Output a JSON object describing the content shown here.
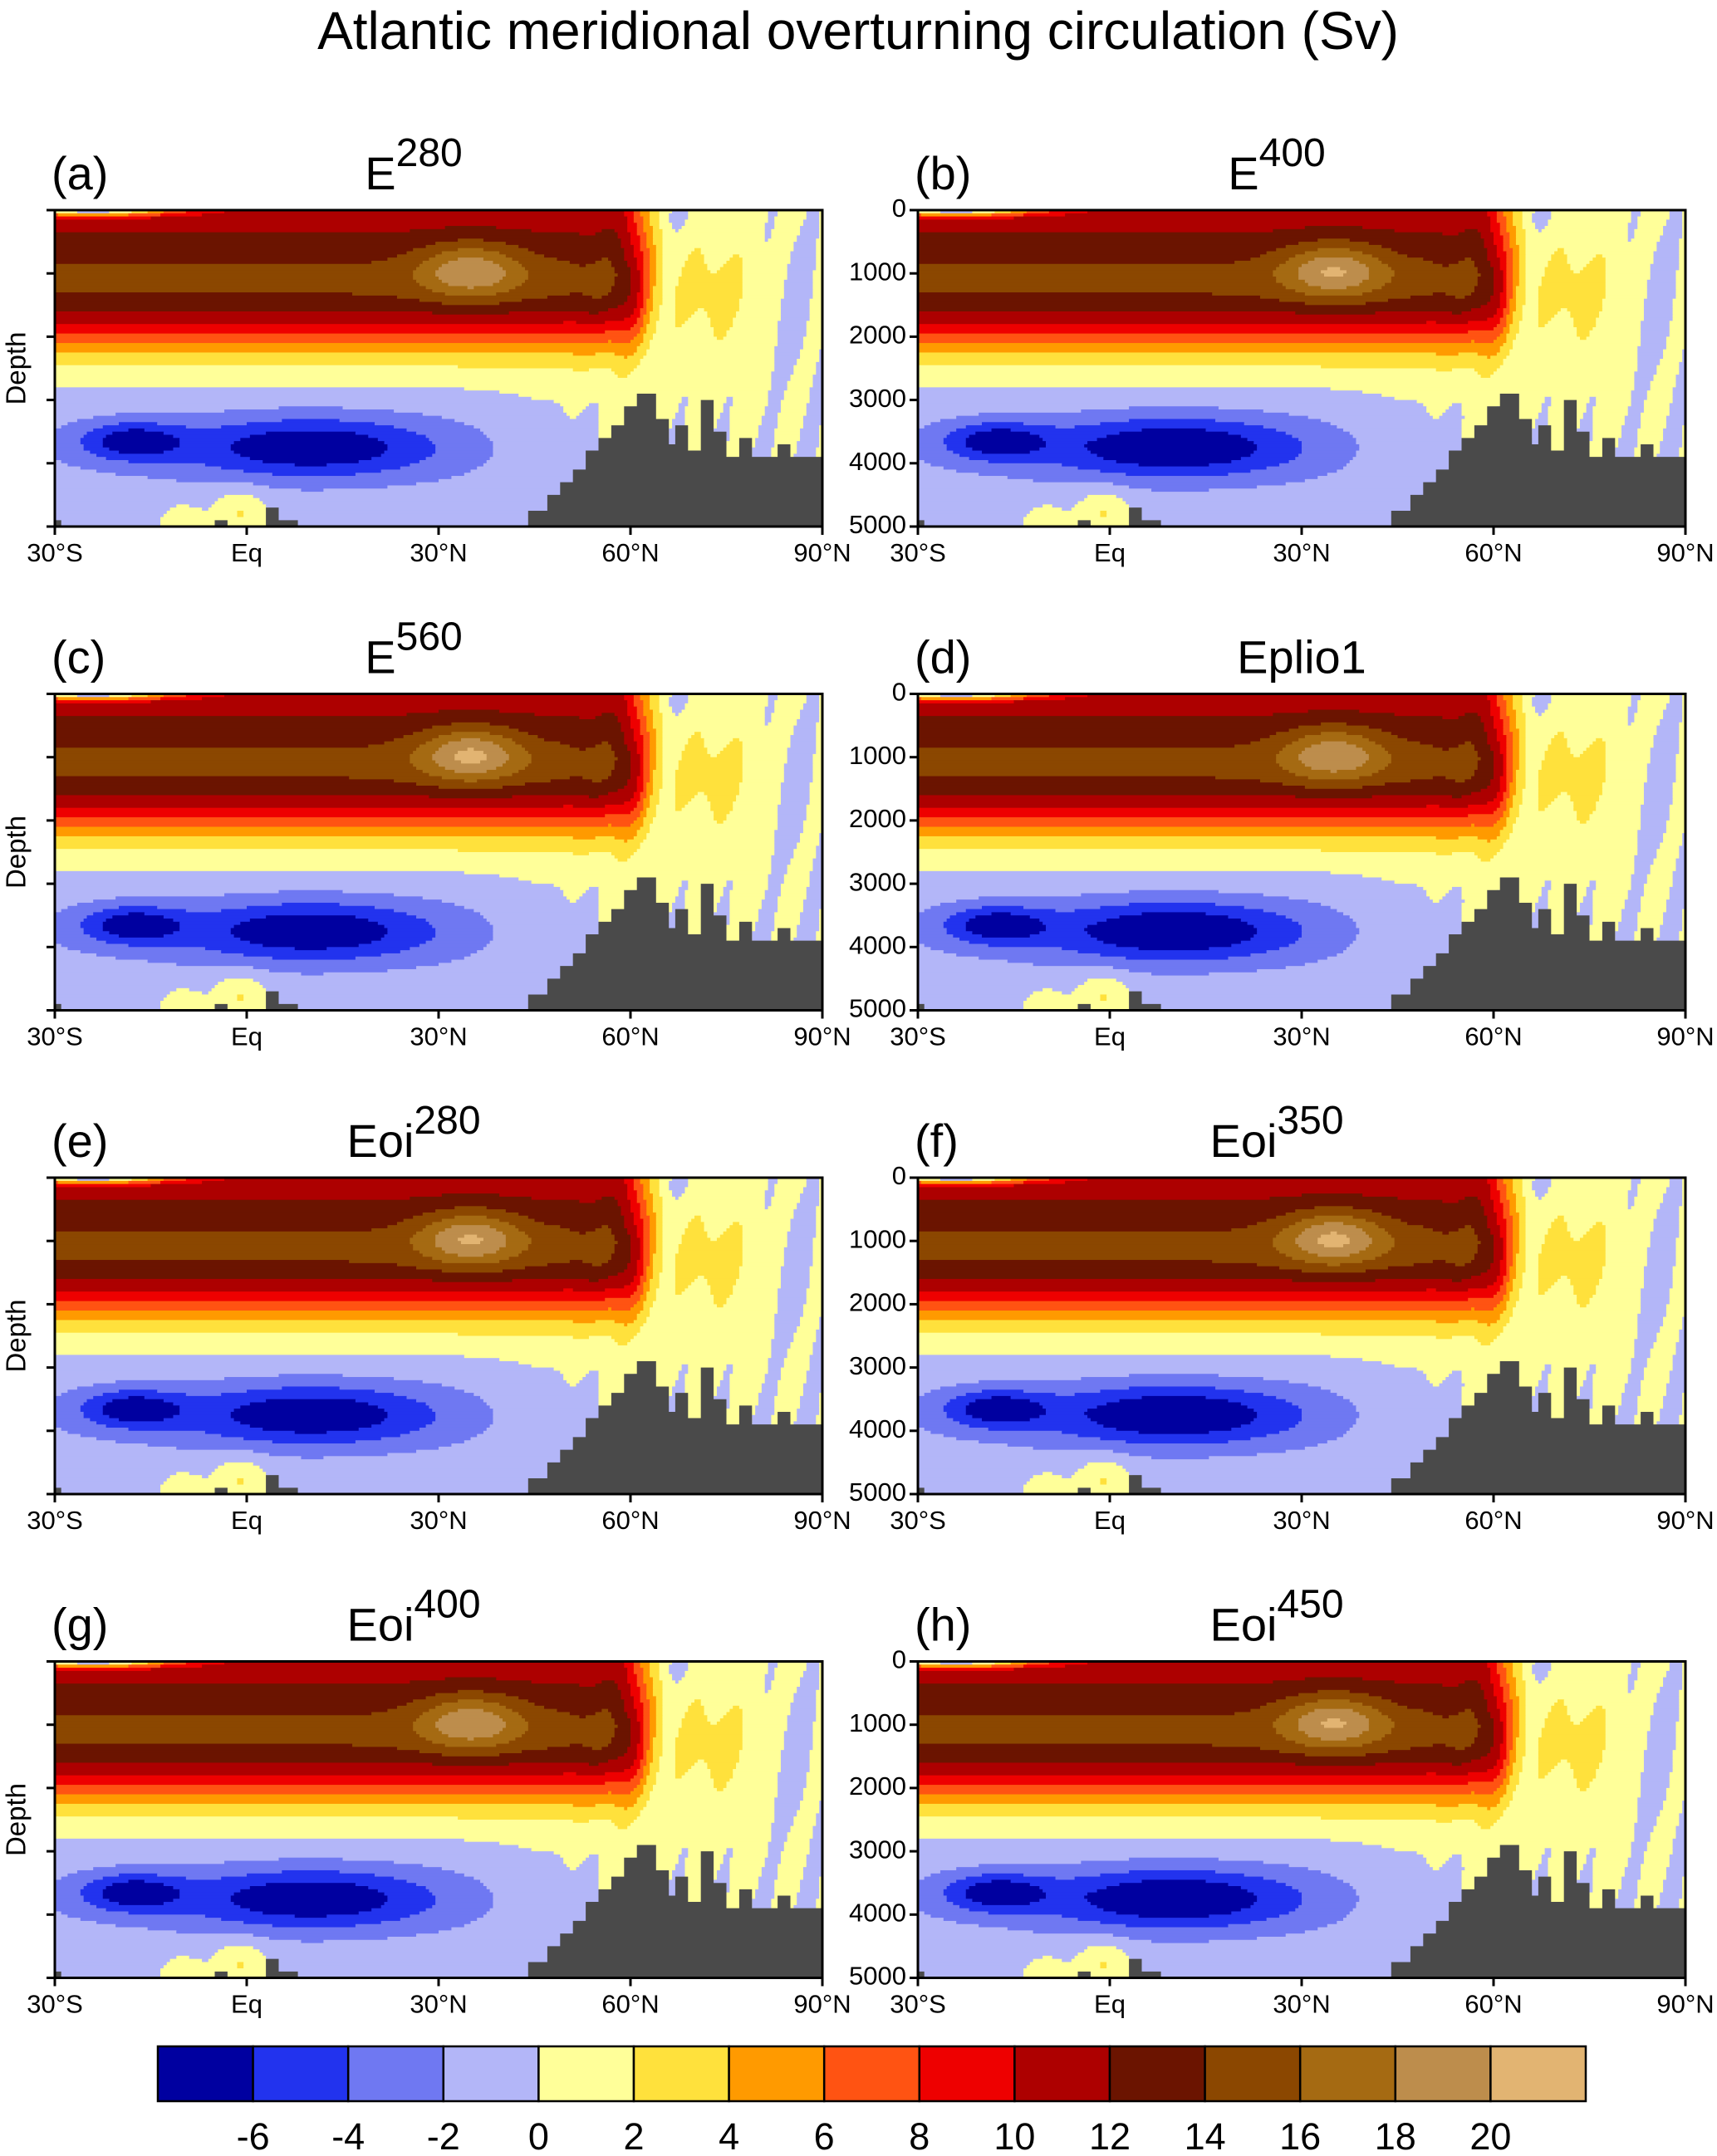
{
  "title": "Atlantic meridional overturning circulation (Sv)",
  "chart_data": [
    {
      "type": "contour",
      "panel_label": "(a)",
      "title": "E",
      "title_superscript": "280",
      "ylabel": "Depth",
      "ytick_labels": false,
      "xlim": [
        -30,
        90
      ],
      "xticks": [
        {
          "value": -30,
          "label": "30°S"
        },
        {
          "value": 0,
          "label": "Eq"
        },
        {
          "value": 30,
          "label": "30°N"
        },
        {
          "value": 60,
          "label": "60°N"
        },
        {
          "value": 90,
          "label": "90°N"
        }
      ],
      "ylim": [
        5000,
        0
      ],
      "yticks": [
        0,
        1000,
        2000,
        3000,
        4000,
        5000
      ]
    },
    {
      "type": "contour",
      "panel_label": "(b)",
      "title": "E",
      "title_superscript": "400",
      "ytick_labels": true,
      "xlim": [
        -30,
        90
      ],
      "xticks": [
        {
          "value": -30,
          "label": "30°S"
        },
        {
          "value": 0,
          "label": "Eq"
        },
        {
          "value": 30,
          "label": "30°N"
        },
        {
          "value": 60,
          "label": "60°N"
        },
        {
          "value": 90,
          "label": "90°N"
        }
      ],
      "ylim": [
        5000,
        0
      ],
      "yticks": [
        0,
        1000,
        2000,
        3000,
        4000,
        5000
      ]
    },
    {
      "type": "contour",
      "panel_label": "(c)",
      "title": "E",
      "title_superscript": "560",
      "ylabel": "Depth",
      "ytick_labels": false,
      "xlim": [
        -30,
        90
      ],
      "xticks": [
        {
          "value": -30,
          "label": "30°S"
        },
        {
          "value": 0,
          "label": "Eq"
        },
        {
          "value": 30,
          "label": "30°N"
        },
        {
          "value": 60,
          "label": "60°N"
        },
        {
          "value": 90,
          "label": "90°N"
        }
      ],
      "ylim": [
        5000,
        0
      ],
      "yticks": [
        0,
        1000,
        2000,
        3000,
        4000,
        5000
      ]
    },
    {
      "type": "contour",
      "panel_label": "(d)",
      "title": "Eplio1",
      "ytick_labels": true,
      "xlim": [
        -30,
        90
      ],
      "xticks": [
        {
          "value": -30,
          "label": "30°S"
        },
        {
          "value": 0,
          "label": "Eq"
        },
        {
          "value": 30,
          "label": "30°N"
        },
        {
          "value": 60,
          "label": "60°N"
        },
        {
          "value": 90,
          "label": "90°N"
        }
      ],
      "ylim": [
        5000,
        0
      ],
      "yticks": [
        0,
        1000,
        2000,
        3000,
        4000,
        5000
      ]
    },
    {
      "type": "contour",
      "panel_label": "(e)",
      "title": "Eoi",
      "title_superscript": "280",
      "ylabel": "Depth",
      "ytick_labels": false,
      "xlim": [
        -30,
        90
      ],
      "xticks": [
        {
          "value": -30,
          "label": "30°S"
        },
        {
          "value": 0,
          "label": "Eq"
        },
        {
          "value": 30,
          "label": "30°N"
        },
        {
          "value": 60,
          "label": "60°N"
        },
        {
          "value": 90,
          "label": "90°N"
        }
      ],
      "ylim": [
        5000,
        0
      ],
      "yticks": [
        0,
        1000,
        2000,
        3000,
        4000,
        5000
      ]
    },
    {
      "type": "contour",
      "panel_label": "(f)",
      "title": "Eoi",
      "title_superscript": "350",
      "ytick_labels": true,
      "xlim": [
        -30,
        90
      ],
      "xticks": [
        {
          "value": -30,
          "label": "30°S"
        },
        {
          "value": 0,
          "label": "Eq"
        },
        {
          "value": 30,
          "label": "30°N"
        },
        {
          "value": 60,
          "label": "60°N"
        },
        {
          "value": 90,
          "label": "90°N"
        }
      ],
      "ylim": [
        5000,
        0
      ],
      "yticks": [
        0,
        1000,
        2000,
        3000,
        4000,
        5000
      ]
    },
    {
      "type": "contour",
      "panel_label": "(g)",
      "title": "Eoi",
      "title_superscript": "400",
      "ylabel": "Depth",
      "ytick_labels": false,
      "xlim": [
        -30,
        90
      ],
      "xticks": [
        {
          "value": -30,
          "label": "30°S"
        },
        {
          "value": 0,
          "label": "Eq"
        },
        {
          "value": 30,
          "label": "30°N"
        },
        {
          "value": 60,
          "label": "60°N"
        },
        {
          "value": 90,
          "label": "90°N"
        }
      ],
      "ylim": [
        5000,
        0
      ],
      "yticks": [
        0,
        1000,
        2000,
        3000,
        4000,
        5000
      ]
    },
    {
      "type": "contour",
      "panel_label": "(h)",
      "title": "Eoi",
      "title_superscript": "450",
      "ytick_labels": true,
      "xlim": [
        -30,
        90
      ],
      "xticks": [
        {
          "value": -30,
          "label": "30°S"
        },
        {
          "value": 0,
          "label": "Eq"
        },
        {
          "value": 30,
          "label": "30°N"
        },
        {
          "value": 60,
          "label": "60°N"
        },
        {
          "value": 90,
          "label": "90°N"
        }
      ],
      "ylim": [
        5000,
        0
      ],
      "yticks": [
        0,
        1000,
        2000,
        3000,
        4000,
        5000
      ]
    },
    {
      "type": "colorbar",
      "levels": [
        -6,
        -4,
        -2,
        0,
        2,
        4,
        6,
        8,
        10,
        12,
        14,
        16,
        18,
        20
      ],
      "colors": [
        "#0000a0",
        "#2233ee",
        "#6f78f2",
        "#b3b6f8",
        "#ffff99",
        "#ffe13c",
        "#ff9a00",
        "#ff5312",
        "#ee0000",
        "#ad0000",
        "#6b1400",
        "#8b4700",
        "#a56a12",
        "#bd8d4c",
        "#e2b472"
      ]
    }
  ]
}
